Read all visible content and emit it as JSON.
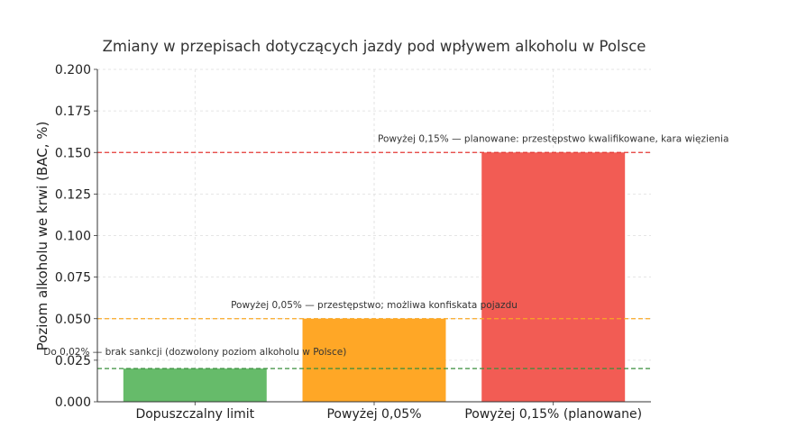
{
  "chart_data": {
    "type": "bar",
    "title": "Zmiany w przepisach dotyczących jazdy pod wpływem alkoholu w Polsce",
    "xlabel": "",
    "ylabel": "Poziom alkoholu we krwi (BAC, %)",
    "categories": [
      "Dopuszczalny limit",
      "Powyżej 0,05%",
      "Powyżej 0,15% (planowane)"
    ],
    "values": [
      0.02,
      0.05,
      0.15
    ],
    "bar_colors": [
      "#66bb6a",
      "#ffa726",
      "#f25c54"
    ],
    "ylim": [
      0,
      0.2
    ],
    "yticks": [
      "0.000",
      "0.025",
      "0.050",
      "0.075",
      "0.100",
      "0.125",
      "0.150",
      "0.175",
      "0.200"
    ],
    "grid": true,
    "reference_lines": [
      {
        "y": 0.02,
        "color": "#388e3c",
        "label": "Do 0,02% — brak sankcji (dozwolony poziom alkoholu w Polsce)"
      },
      {
        "y": 0.05,
        "color": "#f9a825",
        "label": "Powyżej 0,05% — przestępstwo; możliwa konfiskata pojazdu"
      },
      {
        "y": 0.15,
        "color": "#e53935",
        "label": "Powyżej 0,15% — planowane: przestępstwo kwalifikowane, kara więzienia"
      }
    ]
  }
}
